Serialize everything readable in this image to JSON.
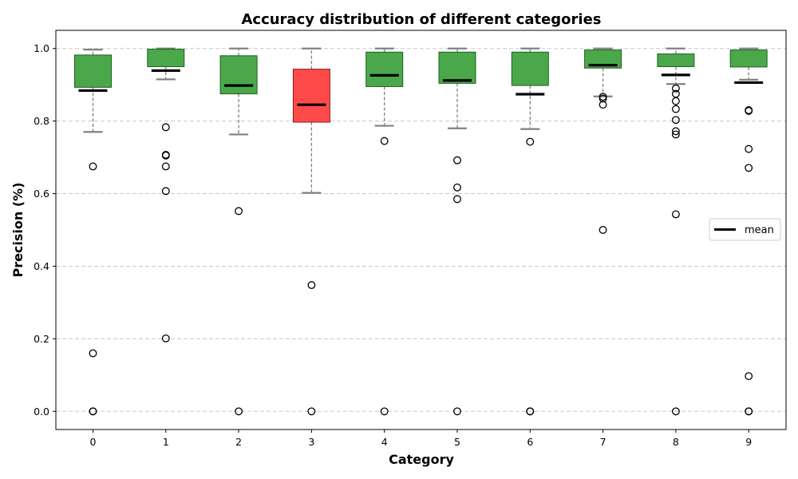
{
  "chart_data": {
    "type": "box",
    "title": "Accuracy distribution of different categories",
    "xlabel": "Category",
    "ylabel": "Precision (%)",
    "categories": [
      "0",
      "1",
      "2",
      "3",
      "4",
      "5",
      "6",
      "7",
      "8",
      "9"
    ],
    "ylim": [
      -0.05,
      1.05
    ],
    "yticks": [
      0.0,
      0.2,
      0.4,
      0.6,
      0.8,
      1.0
    ],
    "ytick_labels": [
      "0.0",
      "0.2",
      "0.4",
      "0.6",
      "0.8",
      "1.0"
    ],
    "grid": "y-dashed",
    "legend": {
      "label": "mean",
      "position": "right"
    },
    "colors": {
      "normal_box": "#4aa84a",
      "highlight_box": "#ff4a4a",
      "mean": "#000000",
      "whisker": "#808080",
      "grid": "#c8c8c8"
    },
    "boxes": [
      {
        "category": "0",
        "q1": 0.893,
        "q3": 0.982,
        "whisker_low": 0.77,
        "whisker_high": 0.997,
        "mean": 0.884,
        "highlight": false,
        "outliers": [
          0.675,
          0.16,
          0.0,
          0.0
        ]
      },
      {
        "category": "1",
        "q1": 0.95,
        "q3": 0.998,
        "whisker_low": 0.915,
        "whisker_high": 1.0,
        "mean": 0.939,
        "highlight": false,
        "outliers": [
          0.783,
          0.707,
          0.705,
          0.675,
          0.607,
          0.201
        ]
      },
      {
        "category": "2",
        "q1": 0.875,
        "q3": 0.98,
        "whisker_low": 0.763,
        "whisker_high": 1.0,
        "mean": 0.898,
        "highlight": false,
        "outliers": [
          0.552,
          0.0
        ]
      },
      {
        "category": "3",
        "q1": 0.797,
        "q3": 0.943,
        "whisker_low": 0.602,
        "whisker_high": 1.0,
        "mean": 0.845,
        "highlight": true,
        "outliers": [
          0.348,
          0.0
        ]
      },
      {
        "category": "4",
        "q1": 0.895,
        "q3": 0.99,
        "whisker_low": 0.787,
        "whisker_high": 1.0,
        "mean": 0.926,
        "highlight": false,
        "outliers": [
          0.745,
          0.0
        ]
      },
      {
        "category": "5",
        "q1": 0.904,
        "q3": 0.99,
        "whisker_low": 0.78,
        "whisker_high": 1.0,
        "mean": 0.912,
        "highlight": false,
        "outliers": [
          0.692,
          0.617,
          0.585,
          0.0
        ]
      },
      {
        "category": "6",
        "q1": 0.898,
        "q3": 0.99,
        "whisker_low": 0.778,
        "whisker_high": 1.0,
        "mean": 0.874,
        "highlight": false,
        "outliers": [
          0.743,
          0.0,
          0.0
        ]
      },
      {
        "category": "7",
        "q1": 0.946,
        "q3": 0.996,
        "whisker_low": 0.868,
        "whisker_high": 1.0,
        "mean": 0.954,
        "highlight": false,
        "outliers": [
          0.867,
          0.862,
          0.845,
          0.5
        ]
      },
      {
        "category": "8",
        "q1": 0.95,
        "q3": 0.985,
        "whisker_low": 0.902,
        "whisker_high": 1.0,
        "mean": 0.927,
        "highlight": false,
        "outliers": [
          0.89,
          0.875,
          0.855,
          0.833,
          0.803,
          0.772,
          0.763,
          0.543,
          0.0
        ]
      },
      {
        "category": "9",
        "q1": 0.949,
        "q3": 0.996,
        "whisker_low": 0.914,
        "whisker_high": 1.0,
        "mean": 0.906,
        "highlight": false,
        "outliers": [
          0.83,
          0.828,
          0.723,
          0.671,
          0.097,
          0.0,
          0.0
        ]
      }
    ]
  }
}
